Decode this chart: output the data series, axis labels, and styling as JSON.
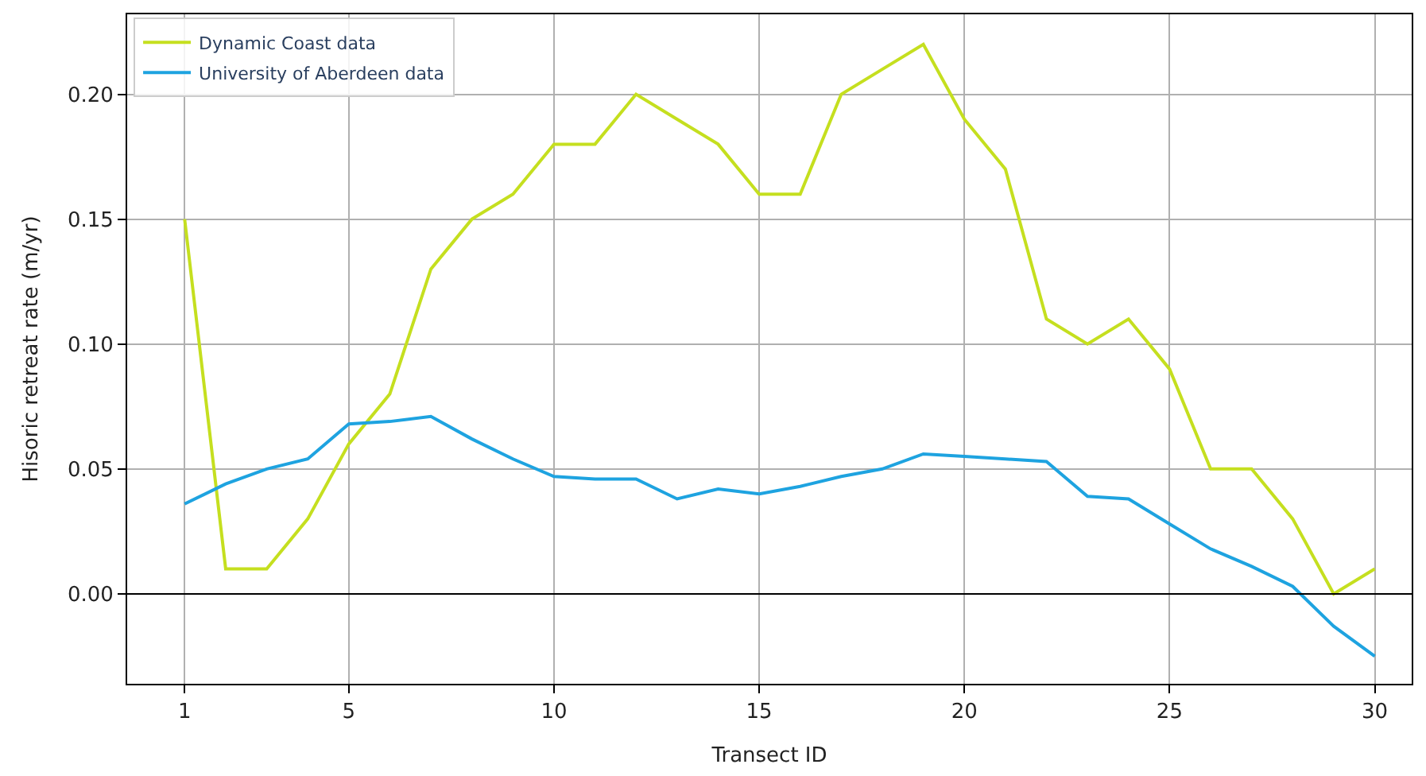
{
  "chart_data": {
    "type": "line",
    "xlabel": "Transect ID",
    "ylabel": "Hisoric retreat rate (m/yr)",
    "x": [
      1,
      2,
      3,
      4,
      5,
      6,
      7,
      8,
      9,
      10,
      11,
      12,
      13,
      14,
      15,
      16,
      17,
      18,
      19,
      20,
      21,
      22,
      23,
      24,
      25,
      26,
      27,
      28,
      29,
      30
    ],
    "series": [
      {
        "name": "Dynamic Coast data",
        "color": "#c5df1f",
        "values": [
          0.15,
          0.01,
          0.01,
          0.03,
          0.06,
          0.08,
          0.13,
          0.15,
          0.16,
          0.18,
          0.18,
          0.2,
          0.19,
          0.18,
          0.16,
          0.16,
          0.2,
          0.21,
          0.22,
          0.19,
          0.17,
          0.11,
          0.1,
          0.11,
          0.09,
          0.05,
          0.05,
          0.03,
          0.0,
          0.01
        ]
      },
      {
        "name": "University of Aberdeen data",
        "color": "#1ea3e0",
        "values": [
          0.036,
          0.044,
          0.05,
          0.054,
          0.068,
          0.069,
          0.071,
          0.062,
          0.054,
          0.047,
          0.046,
          0.046,
          0.038,
          0.042,
          0.04,
          0.043,
          0.047,
          0.05,
          0.056,
          0.055,
          0.054,
          0.053,
          0.039,
          0.038,
          0.028,
          0.018,
          0.011,
          0.003,
          -0.013,
          -0.025
        ]
      }
    ],
    "xlim": [
      -0.4,
      30.9
    ],
    "xticks": [
      1,
      5,
      10,
      15,
      20,
      25,
      30
    ],
    "ylim": [
      -0.036,
      0.232
    ],
    "yticks": [
      {
        "value": 0.0,
        "label": "0.00"
      },
      {
        "value": 0.05,
        "label": "0.05"
      },
      {
        "value": 0.1,
        "label": "0.10"
      },
      {
        "value": 0.15,
        "label": "0.15"
      },
      {
        "value": 0.2,
        "label": "0.20"
      }
    ],
    "ref_lines": [
      {
        "axis": "y",
        "value": 0,
        "color": "#000000"
      }
    ],
    "grid": true,
    "legend": "top left",
    "marker": "none",
    "line_style": "solid"
  }
}
